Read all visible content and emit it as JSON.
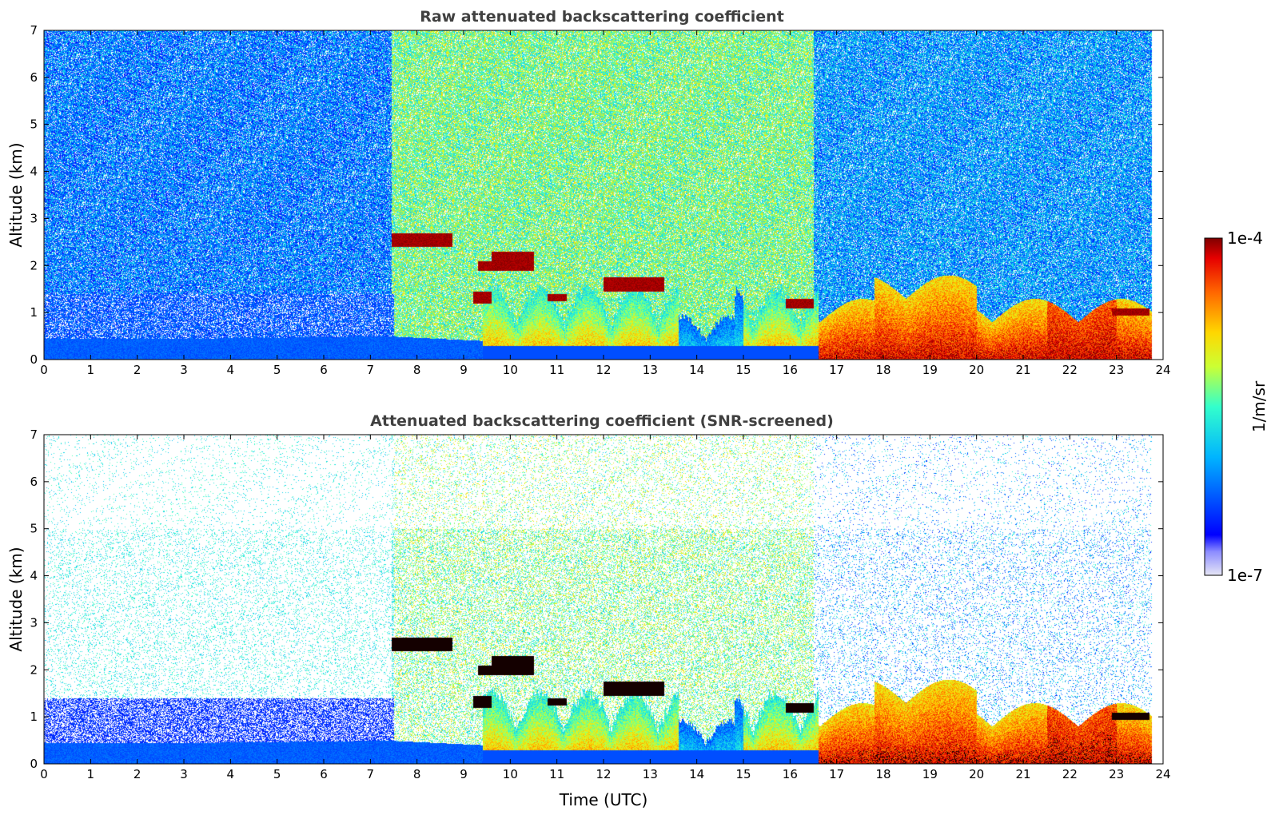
{
  "chart_data": [
    {
      "type": "heatmap",
      "title": "Raw attenuated backscattering coefficient",
      "xlabel": "",
      "ylabel": "Altitude (km)",
      "xlim": [
        0,
        24
      ],
      "ylim": [
        0,
        7
      ],
      "xticks": [
        "0",
        "1",
        "2",
        "3",
        "4",
        "5",
        "6",
        "7",
        "8",
        "9",
        "10",
        "11",
        "12",
        "13",
        "14",
        "15",
        "16",
        "17",
        "18",
        "19",
        "20",
        "21",
        "22",
        "23",
        "24"
      ],
      "yticks": [
        "0",
        "1",
        "2",
        "3",
        "4",
        "5",
        "6",
        "7"
      ],
      "screened": false
    },
    {
      "type": "heatmap",
      "title": "Attenuated backscattering coefficient (SNR-screened)",
      "xlabel": "Time (UTC)",
      "ylabel": "Altitude (km)",
      "xlim": [
        0,
        24
      ],
      "ylim": [
        0,
        7
      ],
      "xticks": [
        "0",
        "1",
        "2",
        "3",
        "4",
        "5",
        "6",
        "7",
        "8",
        "9",
        "10",
        "11",
        "12",
        "13",
        "14",
        "15",
        "16",
        "17",
        "18",
        "19",
        "20",
        "21",
        "22",
        "23",
        "24"
      ],
      "yticks": [
        "0",
        "1",
        "2",
        "3",
        "4",
        "5",
        "6",
        "7"
      ],
      "screened": true
    }
  ],
  "colorbar": {
    "label": "1/m/sr",
    "max_label": "1e-4",
    "min_label": "1e-7",
    "colors": [
      "#e6e6f5",
      "#0000ff",
      "#00b4ff",
      "#33ffcc",
      "#ccff33",
      "#ffd700",
      "#ff6600",
      "#e60000",
      "#800000"
    ]
  },
  "features": {
    "data_end_hour": 23.75,
    "boundary_layer": [
      {
        "t": 0,
        "top": 0.45
      },
      {
        "t": 3,
        "top": 0.45
      },
      {
        "t": 7.4,
        "top": 0.5
      },
      {
        "t": 9.5,
        "top": 0.4
      },
      {
        "t": 13.5,
        "top": 0.2
      },
      {
        "t": 16.6,
        "top": 0.1
      }
    ],
    "strong_layers": [
      {
        "t0": 7.45,
        "t1": 8.75,
        "z0": 2.4,
        "z1": 2.7
      },
      {
        "t0": 9.3,
        "t1": 9.6,
        "z0": 1.9,
        "z1": 2.1
      },
      {
        "t0": 9.6,
        "t1": 10.5,
        "z0": 1.9,
        "z1": 2.3
      },
      {
        "t0": 9.2,
        "t1": 9.6,
        "z0": 1.2,
        "z1": 1.45
      },
      {
        "t0": 10.8,
        "t1": 11.2,
        "z0": 1.25,
        "z1": 1.4
      },
      {
        "t0": 12.0,
        "t1": 13.3,
        "z0": 1.45,
        "z1": 1.75
      },
      {
        "t0": 15.9,
        "t1": 16.5,
        "z0": 1.1,
        "z1": 1.3
      },
      {
        "t0": 22.9,
        "t1": 23.7,
        "z0": 0.95,
        "z1": 1.1
      }
    ]
  }
}
